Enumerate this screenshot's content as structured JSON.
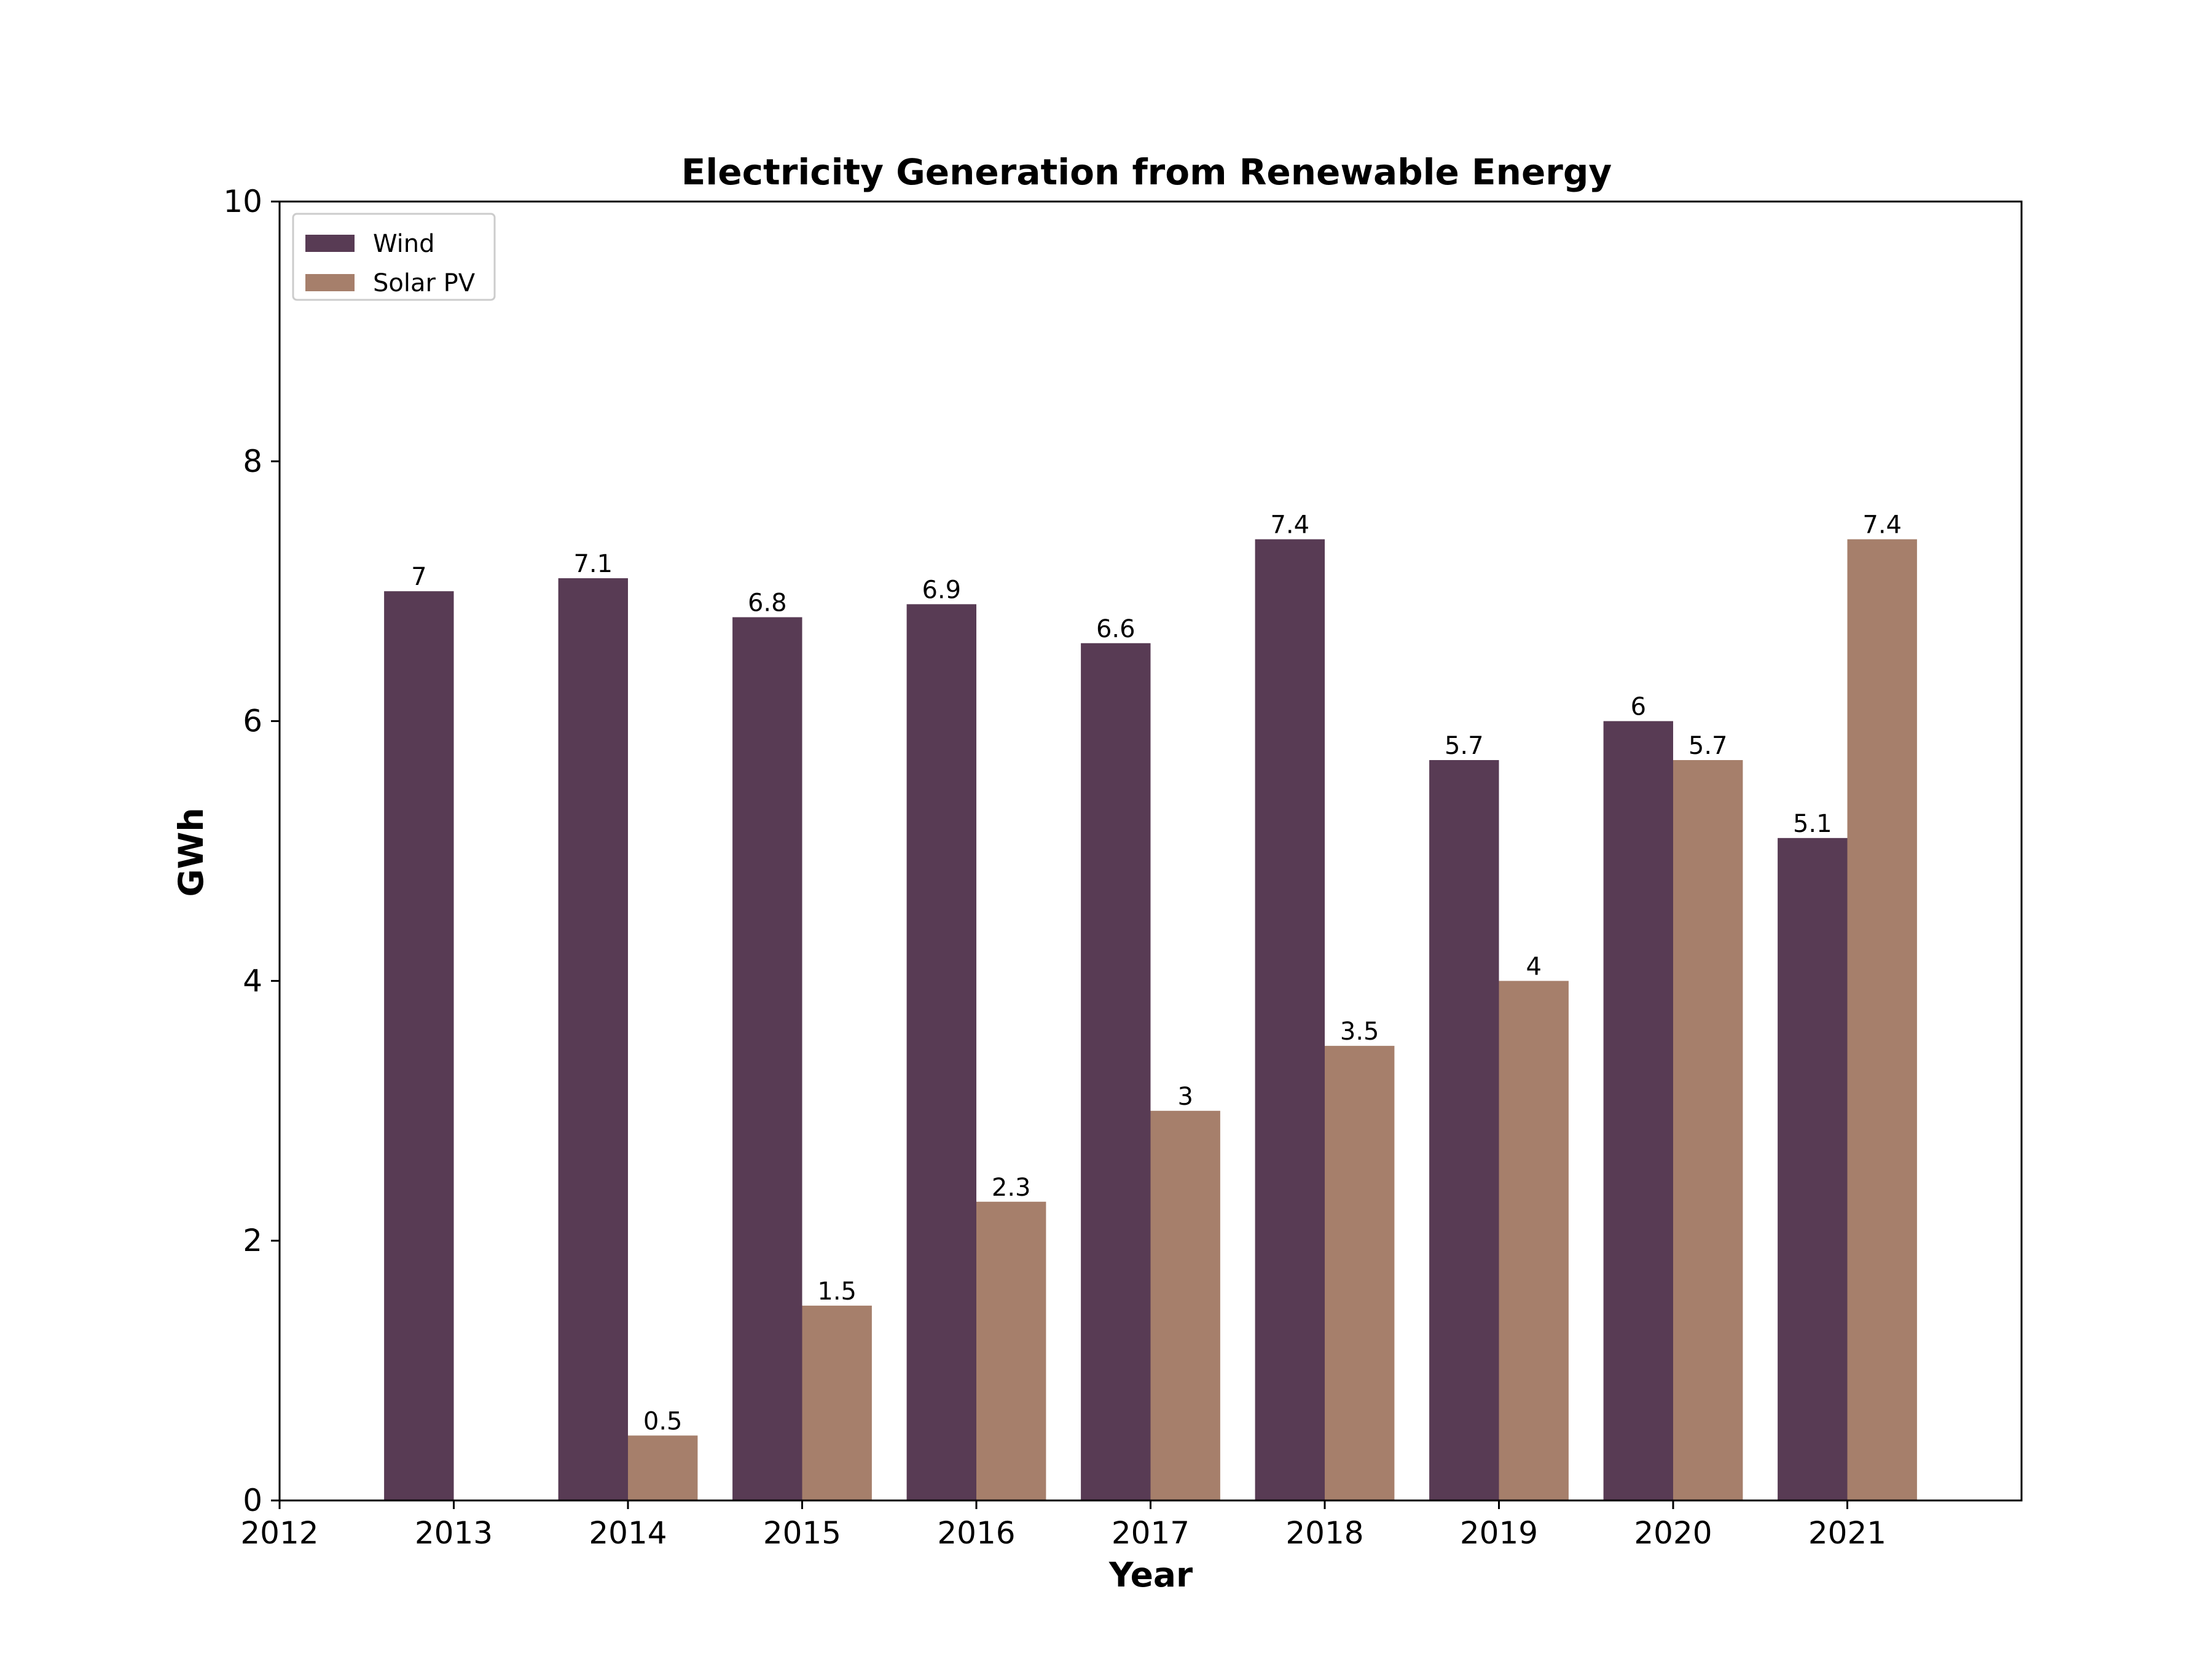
{
  "chart_data": {
    "type": "bar",
    "title": "Electricity Generation from Renewable Energy",
    "xlabel": "Year",
    "ylabel": "GWh",
    "x_ticks": [
      "2012",
      "2013",
      "2014",
      "2015",
      "2016",
      "2017",
      "2018",
      "2019",
      "2020",
      "2021"
    ],
    "y_ticks": [
      "0",
      "2",
      "4",
      "6",
      "8",
      "10"
    ],
    "categories": [
      "2013",
      "2014",
      "2015",
      "2016",
      "2017",
      "2018",
      "2019",
      "2020",
      "2021"
    ],
    "xlim": [
      2012,
      2022
    ],
    "ylim": [
      0,
      10
    ],
    "grid": false,
    "legend_position": "top-left",
    "series": [
      {
        "name": "Wind",
        "color": "#583b54",
        "values": [
          7,
          7.1,
          6.8,
          6.9,
          6.6,
          7.4,
          5.7,
          6,
          5.1
        ],
        "labels": [
          "7",
          "7.1",
          "6.8",
          "6.9",
          "6.6",
          "7.4",
          "5.7",
          "6",
          "5.1"
        ]
      },
      {
        "name": "Solar PV",
        "color": "#a67f6b",
        "values": [
          0,
          0.5,
          1.5,
          2.3,
          3,
          3.5,
          4,
          5.7,
          7.4
        ],
        "labels": [
          "",
          "0.5",
          "1.5",
          "2.3",
          "3",
          "3.5",
          "4",
          "5.7",
          "7.4"
        ]
      }
    ]
  }
}
